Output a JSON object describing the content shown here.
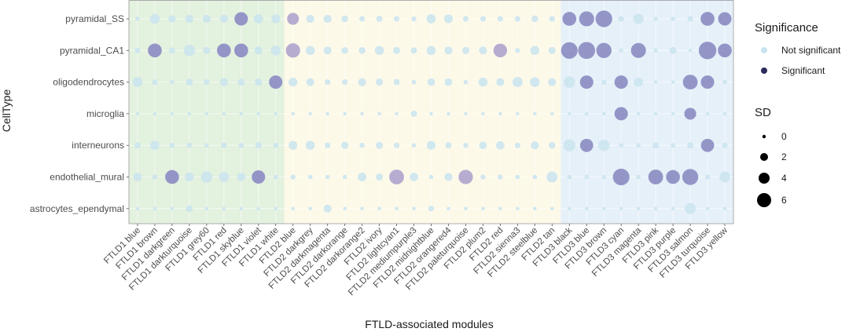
{
  "chart_data": {
    "type": "scatter",
    "xlabel": "FTLD-associated modules",
    "ylabel": "CellType",
    "categories_x": [
      "FTLD1 blue",
      "FTLD1 brown",
      "FTLD1 darkgreen",
      "FTLD1 darkturquoise",
      "FTLD1 grey60",
      "FTLD1 red",
      "FTLD1 skyblue",
      "FTLD1 violet",
      "FTLD1 white",
      "FTLD2 blue",
      "FTLD2 darkgrey",
      "FTLD2 darkmagenta",
      "FTLD2 darkorange",
      "FTLD2 darkorange2",
      "FTLD2 ivory",
      "FTLD2 lightcyan1",
      "FTLD2 mediumpurple3",
      "FTLD2 midnightblue",
      "FTLD2 orangered4",
      "FTLD2 paleturquoise",
      "FTLD2 plum2",
      "FTLD2 red",
      "FTLD2 sienna3",
      "FTLD2 steelblue",
      "FTLD2 tan",
      "FTLD3 black",
      "FTLD3 blue",
      "FTLD3 brown",
      "FTLD3 cyan",
      "FTLD3 magenta",
      "FTLD3 pink",
      "FTLD3 purple",
      "FTLD3 salmon",
      "FTLD3 turquoise",
      "FTLD3 yellow"
    ],
    "categories_y": [
      "pyramidal_SS",
      "pyramidal_CA1",
      "oligodendrocytes",
      "microglia",
      "interneurons",
      "endothelial_mural",
      "astrocytes_ependymal"
    ],
    "groups": [
      {
        "name": "FTLD1",
        "from": 0,
        "to": 8,
        "color": "#e3f1df"
      },
      {
        "name": "FTLD2",
        "from": 9,
        "to": 24,
        "color": "#fdf9e8"
      },
      {
        "name": "FTLD3",
        "from": 25,
        "to": 34,
        "color": "#e6f0f9"
      }
    ],
    "colors": {
      "not_significant": "#c9e4ee",
      "significant": "#8f8fc4",
      "sig_mid": "#b3a8cf"
    },
    "points": {
      "pyramidal_SS": [
        0.3,
        1.5,
        0.8,
        1.0,
        1.0,
        1.0,
        2.8,
        1.3,
        1.2,
        2.2,
        1.0,
        1.0,
        0.7,
        0.5,
        0.6,
        0.5,
        0.4,
        1.3,
        1.2,
        0.5,
        0.5,
        0.5,
        0.5,
        0.7,
        0.5,
        3.0,
        3.5,
        4.3,
        0.5,
        1.7,
        0.3,
        0.3,
        0.5,
        3.0,
        2.8
      ],
      "pyramidal_CA1": [
        0.5,
        3.0,
        0.6,
        2.0,
        0.8,
        3.0,
        3.0,
        1.0,
        1.5,
        3.2,
        1.3,
        1.0,
        0.7,
        0.7,
        1.3,
        0.8,
        0.6,
        1.3,
        1.0,
        0.8,
        1.0,
        2.9,
        0.4,
        1.3,
        0.8,
        4.3,
        4.5,
        3.6,
        0.3,
        3.5,
        0.3,
        0.8,
        0.2,
        4.8,
        3.0
      ],
      "oligodendrocytes": [
        1.5,
        0.5,
        0.3,
        0.7,
        0.5,
        1.0,
        0.8,
        0.8,
        2.8,
        1.2,
        1.0,
        0.5,
        0.5,
        1.0,
        0.8,
        0.6,
        0.3,
        0.9,
        0.9,
        0.3,
        1.3,
        1.0,
        1.6,
        1.5,
        1.0,
        2.1,
        2.8,
        0.4,
        2.8,
        1.3,
        0.2,
        0.2,
        3.4,
        2.8,
        0.3
      ],
      "microglia": [
        0.2,
        0.2,
        0.2,
        0.2,
        0.2,
        0.2,
        0.2,
        0.2,
        0.2,
        0.2,
        0.2,
        0.2,
        0.2,
        0.2,
        0.2,
        0.2,
        0.6,
        0.2,
        0.2,
        0.2,
        0.2,
        0.2,
        0.2,
        0.2,
        0.2,
        0.2,
        0.2,
        0.2,
        2.8,
        0.2,
        0.2,
        0.2,
        2.2,
        0.2,
        0.2
      ],
      "interneurons": [
        0.6,
        1.3,
        0.4,
        0.4,
        0.3,
        0.5,
        0.4,
        0.6,
        0.4,
        1.2,
        1.3,
        0.5,
        0.8,
        0.4,
        0.8,
        0.5,
        0.3,
        1.2,
        0.6,
        0.4,
        0.9,
        1.1,
        0.5,
        1.0,
        0.7,
        2.3,
        2.7,
        2.0,
        0.3,
        0.3,
        0.6,
        0.3,
        0.6,
        2.7,
        0.5
      ],
      "endothelial_mural": [
        1.1,
        0.4,
        3.0,
        1.2,
        2.0,
        1.5,
        1.1,
        2.8,
        0.3,
        0.4,
        0.3,
        0.3,
        0.3,
        1.2,
        0.8,
        3.4,
        1.1,
        0.3,
        1.0,
        3.2,
        0.4,
        0.4,
        0.3,
        0.3,
        1.9,
        0.3,
        0.3,
        0.3,
        4.3,
        0.3,
        3.4,
        3.0,
        4.0,
        0.4,
        1.8
      ],
      "astrocytes_ependymal": [
        0.2,
        0.2,
        0.2,
        0.7,
        0.2,
        0.2,
        0.2,
        0.2,
        0.2,
        0.2,
        0.2,
        1.0,
        0.2,
        0.2,
        0.2,
        0.2,
        0.2,
        0.5,
        0.2,
        0.2,
        0.2,
        0.2,
        0.2,
        0.2,
        0.2,
        0.2,
        0.2,
        0.2,
        0.2,
        0.2,
        0.2,
        0.2,
        1.9,
        0.2,
        0.2
      ]
    },
    "significant": [
      [
        "pyramidal_SS",
        "FTLD1 skyblue"
      ],
      [
        "pyramidal_SS",
        "FTLD2 blue",
        "mid"
      ],
      [
        "pyramidal_SS",
        "FTLD3 black"
      ],
      [
        "pyramidal_SS",
        "FTLD3 blue"
      ],
      [
        "pyramidal_SS",
        "FTLD3 brown"
      ],
      [
        "pyramidal_SS",
        "FTLD3 turquoise"
      ],
      [
        "pyramidal_SS",
        "FTLD3 yellow"
      ],
      [
        "pyramidal_CA1",
        "FTLD1 brown"
      ],
      [
        "pyramidal_CA1",
        "FTLD1 red"
      ],
      [
        "pyramidal_CA1",
        "FTLD1 skyblue"
      ],
      [
        "pyramidal_CA1",
        "FTLD2 blue",
        "mid"
      ],
      [
        "pyramidal_CA1",
        "FTLD2 red",
        "mid"
      ],
      [
        "pyramidal_CA1",
        "FTLD3 black"
      ],
      [
        "pyramidal_CA1",
        "FTLD3 blue"
      ],
      [
        "pyramidal_CA1",
        "FTLD3 brown"
      ],
      [
        "pyramidal_CA1",
        "FTLD3 magenta"
      ],
      [
        "pyramidal_CA1",
        "FTLD3 turquoise"
      ],
      [
        "pyramidal_CA1",
        "FTLD3 yellow"
      ],
      [
        "oligodendrocytes",
        "FTLD1 white"
      ],
      [
        "oligodendrocytes",
        "FTLD3 blue"
      ],
      [
        "oligodendrocytes",
        "FTLD3 cyan"
      ],
      [
        "oligodendrocytes",
        "FTLD3 salmon"
      ],
      [
        "oligodendrocytes",
        "FTLD3 turquoise"
      ],
      [
        "microglia",
        "FTLD3 cyan"
      ],
      [
        "microglia",
        "FTLD3 salmon"
      ],
      [
        "interneurons",
        "FTLD3 blue"
      ],
      [
        "interneurons",
        "FTLD3 turquoise"
      ],
      [
        "endothelial_mural",
        "FTLD1 darkgreen"
      ],
      [
        "endothelial_mural",
        "FTLD1 violet"
      ],
      [
        "endothelial_mural",
        "FTLD2 lightcyan1",
        "mid"
      ],
      [
        "endothelial_mural",
        "FTLD2 paleturquoise",
        "mid"
      ],
      [
        "endothelial_mural",
        "FTLD3 cyan"
      ],
      [
        "endothelial_mural",
        "FTLD3 pink"
      ],
      [
        "endothelial_mural",
        "FTLD3 purple"
      ],
      [
        "endothelial_mural",
        "FTLD3 salmon"
      ]
    ],
    "legend": {
      "significance_title": "Significance",
      "significance_items": [
        {
          "label": "Not significant",
          "color": "#c9e4ee"
        },
        {
          "label": "Significant",
          "color": "#2b2b5e"
        }
      ],
      "size_title": "SD",
      "size_values": [
        0,
        2,
        4,
        6
      ]
    }
  }
}
